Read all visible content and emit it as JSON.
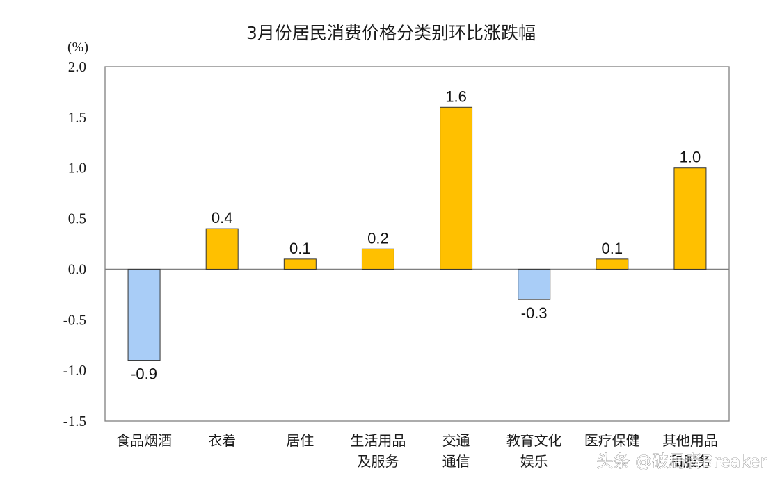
{
  "chart_data": {
    "type": "bar",
    "title": "3月份居民消费价格分类别环比涨跌幅",
    "unit_label": "(%)",
    "categories": [
      [
        "食品烟酒"
      ],
      [
        "衣着"
      ],
      [
        "居住"
      ],
      [
        "生活用品",
        "及服务"
      ],
      [
        "交通",
        "通信"
      ],
      [
        "教育文化",
        "娱乐"
      ],
      [
        "医疗保健"
      ],
      [
        "其他用品",
        "和服务"
      ]
    ],
    "values": [
      -0.9,
      0.4,
      0.1,
      0.2,
      1.6,
      -0.3,
      0.1,
      1.0
    ],
    "data_labels": [
      "-0.9",
      "0.4",
      "0.1",
      "0.2",
      "1.6",
      "-0.3",
      "0.1",
      "1.0"
    ],
    "ylim": [
      -1.5,
      2.0
    ],
    "yticks": [
      2.0,
      1.5,
      1.0,
      0.5,
      0.0,
      -0.5,
      -1.0,
      -1.5
    ],
    "ytick_labels": [
      "2.0",
      "1.5",
      "1.0",
      "0.5",
      "0.0",
      "-0.5",
      "-1.0",
      "-1.5"
    ],
    "grid": false,
    "legend": "none",
    "colors": {
      "positive": "#FFC000",
      "negative": "#A9CDF7",
      "bar_border": "#333333",
      "axis": "#7f7f7f"
    }
  },
  "watermark": "头条 @破局者Breaker"
}
